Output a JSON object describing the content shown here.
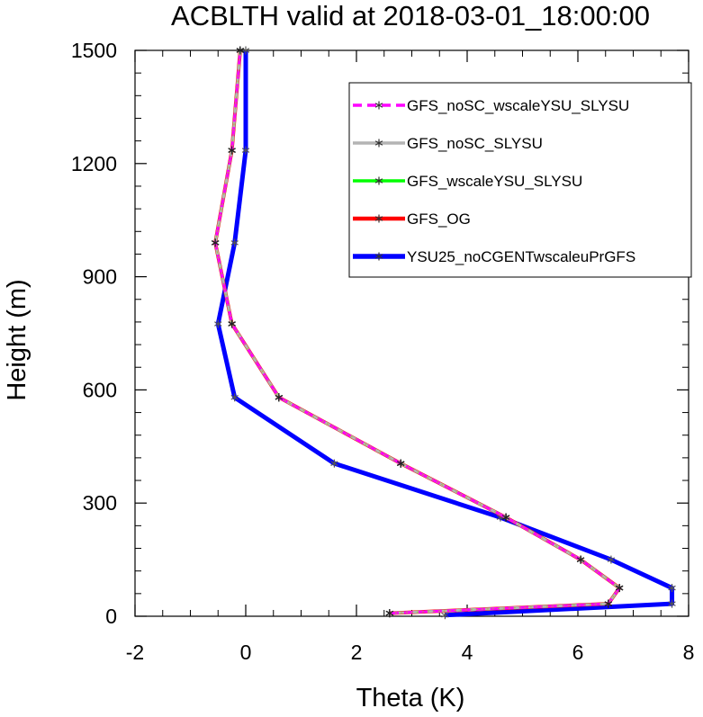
{
  "chart_data": {
    "type": "line",
    "title": "ACBLTH valid at 2018-03-01_18:00:00",
    "xlabel": "Theta (K)",
    "ylabel": "Height (m)",
    "xlim": [
      -2,
      8
    ],
    "ylim": [
      0,
      1500
    ],
    "xticks": [
      "-2",
      "0",
      "2",
      "4",
      "6",
      "8"
    ],
    "yticks": [
      "0",
      "300",
      "600",
      "900",
      "1200",
      "1500"
    ],
    "legend_position": "top-right",
    "series": [
      {
        "name": "GFS_noSC_wscaleYSU_SLYSU",
        "color": "#ff00ff",
        "dash": true,
        "width": 3,
        "x": [
          2.6,
          6.55,
          6.75,
          6.05,
          4.7,
          2.8,
          0.6,
          -0.25,
          -0.55,
          -0.25,
          -0.1
        ],
        "y": [
          8,
          33,
          75,
          150,
          262,
          405,
          580,
          775,
          990,
          1235,
          1500
        ]
      },
      {
        "name": "GFS_noSC_SLYSU",
        "color": "#b4b4b4",
        "dash": false,
        "width": 3,
        "x": [
          2.6,
          6.55,
          6.75,
          6.05,
          4.7,
          2.8,
          0.6,
          -0.25,
          -0.55,
          -0.25,
          -0.1
        ],
        "y": [
          8,
          33,
          75,
          150,
          262,
          405,
          580,
          775,
          990,
          1235,
          1500
        ]
      },
      {
        "name": "GFS_wscaleYSU_SLYSU",
        "color": "#00ff00",
        "dash": false,
        "width": 3,
        "x": [
          2.6,
          6.55,
          6.75,
          6.05,
          4.7,
          2.8,
          0.6,
          -0.25,
          -0.55,
          -0.25,
          -0.1
        ],
        "y": [
          8,
          33,
          75,
          150,
          262,
          405,
          580,
          775,
          990,
          1235,
          1500
        ]
      },
      {
        "name": "GFS_OG",
        "color": "#ff0000",
        "dash": false,
        "width": 4,
        "x": [
          2.6,
          6.55,
          6.75,
          6.05,
          4.7,
          2.8,
          0.6,
          -0.25,
          -0.55,
          -0.25,
          -0.1
        ],
        "y": [
          8,
          33,
          75,
          150,
          262,
          405,
          580,
          775,
          990,
          1235,
          1500
        ]
      },
      {
        "name": "YSU25_noCGENTwscaleuPrGFS",
        "color": "#0000ff",
        "dash": false,
        "width": 5,
        "x": [
          3.6,
          7.7,
          7.7,
          6.6,
          4.6,
          1.6,
          -0.2,
          -0.5,
          -0.2,
          0.0,
          0.0
        ],
        "y": [
          3,
          33,
          75,
          150,
          262,
          405,
          580,
          775,
          990,
          1235,
          1500
        ]
      }
    ]
  }
}
